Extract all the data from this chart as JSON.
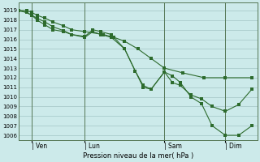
{
  "xlabel": "Pression niveau de la mer( hPa )",
  "background_color": "#cceaea",
  "grid_color": "#aacccc",
  "line_color": "#2d6b2d",
  "spine_color": "#557755",
  "ylim": [
    1005.5,
    1019.8
  ],
  "xlim": [
    0,
    9.0
  ],
  "yticks": [
    1006,
    1007,
    1008,
    1009,
    1010,
    1011,
    1012,
    1013,
    1014,
    1015,
    1016,
    1017,
    1018,
    1019
  ],
  "xtick_labels": [
    "| Ven",
    "| Lun",
    "| Sam",
    "| Dim"
  ],
  "xtick_positions": [
    0.5,
    2.5,
    5.5,
    7.8
  ],
  "vline_positions": [
    0.5,
    2.5,
    5.5,
    7.8
  ],
  "line1": {
    "x": [
      0.0,
      0.3,
      0.5,
      0.7,
      1.0,
      1.3,
      1.7,
      2.0,
      2.5,
      3.2,
      3.6,
      4.0,
      4.5,
      5.0,
      5.5,
      6.2,
      7.0,
      7.8,
      8.8
    ],
    "y": [
      1019,
      1019,
      1018.8,
      1018.5,
      1018.2,
      1017.8,
      1017.4,
      1017.0,
      1016.8,
      1016.5,
      1016.2,
      1015.8,
      1015.0,
      1014.0,
      1013.0,
      1012.5,
      1012.0,
      1012.0,
      1012.0
    ]
  },
  "line2": {
    "x": [
      0.0,
      0.3,
      0.5,
      0.7,
      1.0,
      1.3,
      1.7,
      2.0,
      2.5,
      2.8,
      3.1,
      3.5,
      4.0,
      4.4,
      4.7,
      5.0,
      5.5,
      5.8,
      6.1,
      6.5,
      6.9,
      7.3,
      7.8,
      8.3,
      8.8
    ],
    "y": [
      1019,
      1018.8,
      1018.5,
      1018.0,
      1017.5,
      1017.0,
      1016.8,
      1016.5,
      1016.3,
      1017.0,
      1016.8,
      1016.5,
      1015.0,
      1012.7,
      1011.0,
      1010.8,
      1012.6,
      1011.5,
      1011.2,
      1010.2,
      1009.8,
      1009.0,
      1008.5,
      1009.2,
      1010.8
    ]
  },
  "line3": {
    "x": [
      0.0,
      0.3,
      0.5,
      0.7,
      1.0,
      1.3,
      1.7,
      2.0,
      2.5,
      2.8,
      3.1,
      3.5,
      4.0,
      4.4,
      4.7,
      5.0,
      5.5,
      5.8,
      6.1,
      6.5,
      6.9,
      7.3,
      7.8,
      8.3,
      8.8
    ],
    "y": [
      1019,
      1018.8,
      1018.5,
      1018.2,
      1017.8,
      1017.3,
      1016.9,
      1016.5,
      1016.2,
      1016.8,
      1016.5,
      1016.2,
      1015.0,
      1012.7,
      1011.2,
      1010.8,
      1012.6,
      1012.2,
      1011.5,
      1010.0,
      1009.3,
      1007.0,
      1006.0,
      1006.0,
      1007.0
    ]
  },
  "marker_size": 2.5
}
